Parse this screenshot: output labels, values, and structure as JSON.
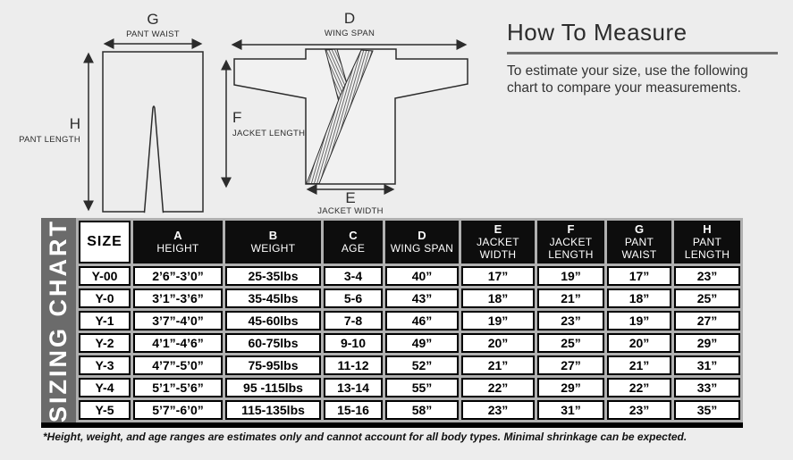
{
  "colors": {
    "page_bg": "#ededed",
    "band_gray": "#6b6b6b",
    "gap_gray": "#b0b0b0",
    "header_black": "#0d0d0d",
    "line_color": "#2c2c2c"
  },
  "diagram": {
    "pants": {
      "waist_letter": "G",
      "waist_label": "PANT WAIST",
      "length_letter": "H",
      "length_label": "PANT LENGTH"
    },
    "jacket": {
      "wingspan_letter": "D",
      "wingspan_label": "WING SPAN",
      "length_letter": "F",
      "length_label": "JACKET LENGTH",
      "width_letter": "E",
      "width_label": "JACKET WIDTH"
    }
  },
  "how_to_measure": {
    "title": "How To Measure",
    "description": "To estimate your size, use the following chart to compare your measurements."
  },
  "sizing_chart": {
    "side_label": "SIZING CHART",
    "columns": [
      {
        "letter": "",
        "name": "SIZE"
      },
      {
        "letter": "A",
        "name": "HEIGHT"
      },
      {
        "letter": "B",
        "name": "WEIGHT"
      },
      {
        "letter": "C",
        "name": "AGE"
      },
      {
        "letter": "D",
        "name": "WING SPAN"
      },
      {
        "letter": "E",
        "name": "JACKET WIDTH"
      },
      {
        "letter": "F",
        "name": "JACKET LENGTH"
      },
      {
        "letter": "G",
        "name": "PANT WAIST"
      },
      {
        "letter": "H",
        "name": "PANT LENGTH"
      }
    ],
    "rows": [
      {
        "size": "Y-00",
        "values": [
          "2’6”-3’0”",
          "25-35lbs",
          "3-4",
          "40”",
          "17”",
          "19”",
          "17”",
          "23”"
        ]
      },
      {
        "size": "Y-0",
        "values": [
          "3’1”-3’6”",
          "35-45lbs",
          "5-6",
          "43”",
          "18”",
          "21”",
          "18”",
          "25”"
        ]
      },
      {
        "size": "Y-1",
        "values": [
          "3’7”-4’0”",
          "45-60lbs",
          "7-8",
          "46”",
          "19”",
          "23”",
          "19”",
          "27”"
        ]
      },
      {
        "size": "Y-2",
        "values": [
          "4’1”-4’6”",
          "60-75lbs",
          "9-10",
          "49”",
          "20”",
          "25”",
          "20”",
          "29”"
        ]
      },
      {
        "size": "Y-3",
        "values": [
          "4’7”-5’0”",
          "75-95lbs",
          "11-12",
          "52”",
          "21”",
          "27”",
          "21”",
          "31”"
        ]
      },
      {
        "size": "Y-4",
        "values": [
          "5’1”-5’6”",
          "95 -115lbs",
          "13-14",
          "55”",
          "22”",
          "29”",
          "22”",
          "33”"
        ]
      },
      {
        "size": "Y-5",
        "values": [
          "5’7”-6’0”",
          "115-135lbs",
          "15-16",
          "58”",
          "23”",
          "31”",
          "23”",
          "35”"
        ]
      }
    ],
    "footnote": "*Height, weight, and age ranges are estimates only and cannot account for all body types. Minimal shrinkage can be expected."
  }
}
